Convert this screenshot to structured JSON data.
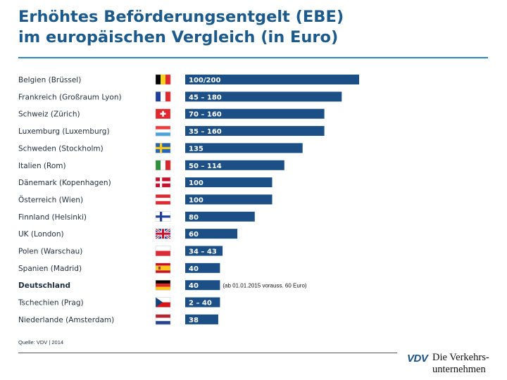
{
  "header": {
    "title_line1": "Erhöhtes Beförderungsentgelt (EBE)",
    "title_line2": "im europäischen Vergleich (in Euro)"
  },
  "chart_data": {
    "type": "bar",
    "orientation": "horizontal",
    "title": "Erhöhtes Beförderungsentgelt (EBE) im europäischen Vergleich (in Euro)",
    "xlim": [
      0,
      200
    ],
    "grid": false,
    "categories": [
      "Belgien (Brüssel)",
      "Frankreich (Großraum Lyon)",
      "Schweiz (Zürich)",
      "Luxemburg (Luxemburg)",
      "Schweden (Stockholm)",
      "Italien (Rom)",
      "Dänemark (Kopenhagen)",
      "Österreich (Wien)",
      "Finnland (Helsinki)",
      "UK (London)",
      "Polen (Warschau)",
      "Spanien (Madrid)",
      "Deutschland",
      "Tschechien (Prag)",
      "Niederlande (Amsterdam)"
    ],
    "values": [
      200,
      180,
      160,
      160,
      135,
      114,
      100,
      100,
      80,
      60,
      43,
      40,
      40,
      40,
      38
    ],
    "data_labels": [
      "100/200",
      "45 – 180",
      "70 – 160",
      "35 – 160",
      "135",
      "50 – 114",
      "100",
      "100",
      "80",
      "60",
      "34 – 43",
      "40",
      "40",
      "2 – 40",
      "38"
    ],
    "highlight_category": "Deutschland",
    "annotations": [
      {
        "category": "Deutschland",
        "text": "(ab 01.01.2015 vorauss. 60 Euro)"
      }
    ],
    "flags": [
      "belgium",
      "france",
      "switzerland",
      "luxembourg",
      "sweden",
      "italy",
      "denmark",
      "austria",
      "finland",
      "uk",
      "poland",
      "spain",
      "germany",
      "czechia",
      "netherlands"
    ],
    "colors": {
      "bar": "#1b4f86",
      "bar_label": "#ffffff",
      "category_label": "#1f2d3d"
    }
  },
  "footer": {
    "source": "Quelle: VDV | 2014",
    "logo_mark": "VDV",
    "logo_line1": "Die Verkehrs-",
    "logo_line2": "unternehmen"
  }
}
